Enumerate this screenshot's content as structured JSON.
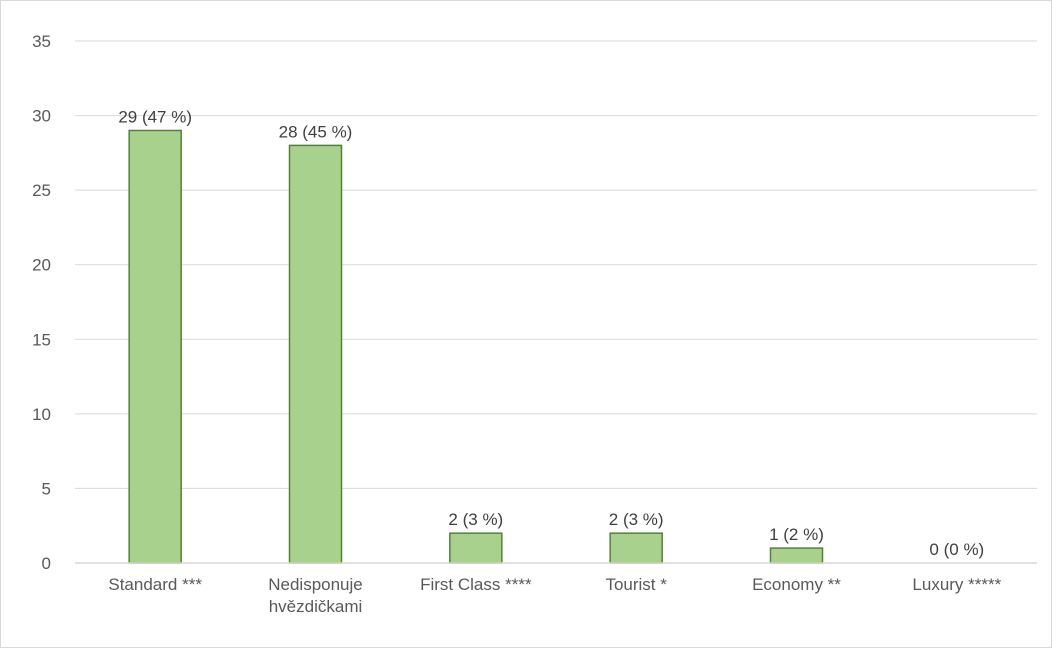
{
  "chart_data": {
    "type": "bar",
    "categories": [
      [
        "Standard ***"
      ],
      [
        "Nedisponuje",
        "hvězdičkami"
      ],
      [
        "First Class ****"
      ],
      [
        "Tourist *"
      ],
      [
        "Economy **"
      ],
      [
        "Luxury *****"
      ]
    ],
    "values": [
      29,
      28,
      2,
      2,
      1,
      0
    ],
    "data_labels": [
      "29 (47 %)",
      "28 (45 %)",
      "2 (3 %)",
      "2 (3 %)",
      "1 (2 %)",
      "0 (0 %)"
    ],
    "yticks": [
      0,
      5,
      10,
      15,
      20,
      25,
      30,
      35
    ],
    "ylim": [
      0,
      35
    ],
    "grid": true,
    "legend": "none",
    "title": "",
    "xlabel": "",
    "ylabel": "",
    "colors": {
      "bar_fill": "#a9d18e",
      "bar_stroke": "#548235",
      "grid": "#d9d9d9"
    }
  }
}
